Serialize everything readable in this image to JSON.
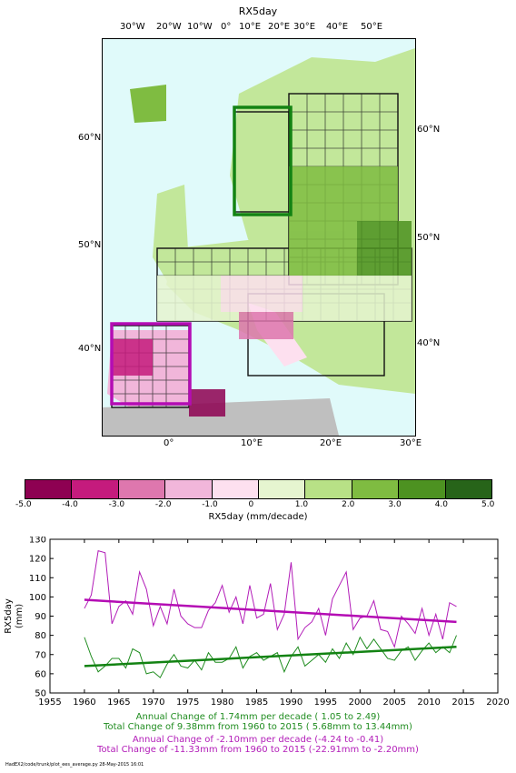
{
  "map": {
    "title": "RX5day",
    "lon_top_labels": [
      "30°W",
      "20°W",
      "10°W",
      "0°",
      "10°E",
      "20°E",
      "30°E",
      "40°E",
      "50°E"
    ],
    "lon_bottom_labels": [
      "0°",
      "10°E",
      "20°E",
      "30°E"
    ],
    "lat_left_labels": [
      "60°N",
      "50°N",
      "40°N"
    ],
    "lat_right_labels": [
      "60°N",
      "50°N",
      "40°N"
    ],
    "colors": {
      "ocean": "#e0fafa",
      "land_nodata": "#bfbfbf",
      "box_green": "#138313",
      "box_magenta": "#b40cb4"
    }
  },
  "colorbar": {
    "ticks": [
      "-5.0",
      "-4.0",
      "-3.0",
      "-2.0",
      "-1.0",
      "0",
      "1.0",
      "2.0",
      "3.0",
      "4.0",
      "5.0"
    ],
    "colors": [
      "#8e0152",
      "#c51b7d",
      "#de77ae",
      "#f1b6da",
      "#fde0ef",
      "#e6f5d0",
      "#b8e186",
      "#7fbc41",
      "#4d9221",
      "#276419"
    ],
    "label": "RX5day (mm/decade)"
  },
  "chart_data": {
    "type": "line",
    "ylabel": "RX5day\n(mm)",
    "xlim": [
      1955,
      2020
    ],
    "ylim": [
      50,
      130
    ],
    "xticks": [
      1955,
      1960,
      1965,
      1970,
      1975,
      1980,
      1985,
      1990,
      1995,
      2000,
      2005,
      2010,
      2015,
      2020
    ],
    "yticks": [
      50,
      60,
      70,
      80,
      90,
      100,
      110,
      120,
      130
    ],
    "x": [
      1960,
      1961,
      1962,
      1963,
      1964,
      1965,
      1966,
      1967,
      1968,
      1969,
      1970,
      1971,
      1972,
      1973,
      1974,
      1975,
      1976,
      1977,
      1978,
      1979,
      1980,
      1981,
      1982,
      1983,
      1984,
      1985,
      1986,
      1987,
      1988,
      1989,
      1990,
      1991,
      1992,
      1993,
      1994,
      1995,
      1996,
      1997,
      1998,
      1999,
      2000,
      2001,
      2002,
      2003,
      2004,
      2005,
      2006,
      2007,
      2008,
      2009,
      2010,
      2011,
      2012,
      2013,
      2014
    ],
    "series": [
      {
        "color": "#1f8c1f",
        "values": [
          79,
          69,
          61,
          64,
          68,
          68,
          63,
          73,
          71,
          60,
          61,
          58,
          65,
          70,
          64,
          63,
          67,
          62,
          71,
          66,
          66,
          68,
          74,
          63,
          69,
          71,
          67,
          69,
          71,
          61,
          69,
          74,
          64,
          67,
          70,
          66,
          73,
          68,
          76,
          70,
          79,
          73,
          78,
          73,
          68,
          67,
          72,
          74,
          67,
          72,
          76,
          71,
          74,
          71,
          80
        ]
      },
      {
        "color": "#b21cb8",
        "values": [
          94,
          101,
          124,
          123,
          86,
          95,
          98,
          91,
          113,
          104,
          85,
          95,
          86,
          104,
          90,
          86,
          84,
          84,
          93,
          97,
          106,
          92,
          100,
          86,
          106,
          89,
          91,
          107,
          83,
          91,
          118,
          78,
          84,
          87,
          94,
          80,
          99,
          106,
          113,
          83,
          89,
          90,
          98,
          83,
          82,
          74,
          90,
          86,
          81,
          94,
          80,
          91,
          78,
          97,
          95
        ]
      }
    ],
    "trends": [
      {
        "color": "#138313",
        "start": 64,
        "end": 74
      },
      {
        "color": "#b40cb4",
        "start": 98.5,
        "end": 87
      }
    ]
  },
  "stats": {
    "green_line1": "Annual Change of  1.74mm per decade ( 1.05 to  2.49)",
    "green_line2": "Total Change of  9.38mm from 1960 to 2015 ( 5.68mm to 13.44mm)",
    "mag_line1": "Annual Change of -2.10mm per decade (-4.24 to -0.41)",
    "mag_line2": "Total Change of -11.33mm from 1960 to 2015 (-22.91mm to -2.20mm)"
  },
  "footer": "HadEX2/code/trunk/plot_ees_average.py   28-May-2015 16:01"
}
